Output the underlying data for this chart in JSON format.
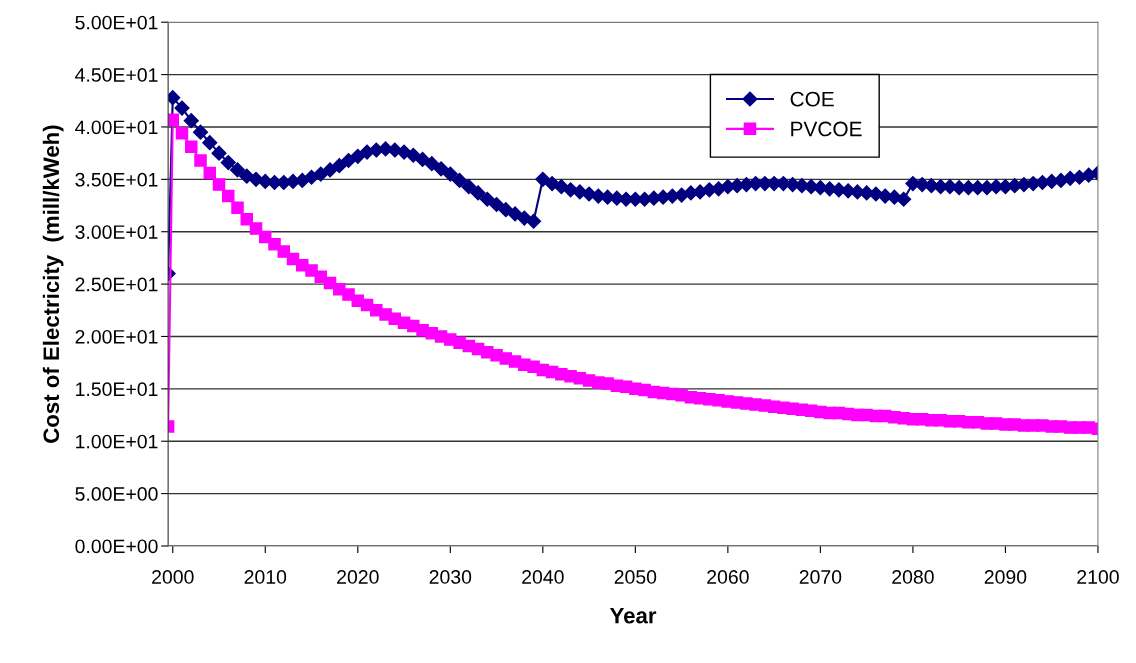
{
  "chart_data": {
    "type": "line",
    "xlabel": "Year",
    "ylabel": "Cost of Electricity  (mill/kWeh)",
    "x": [
      1999.5,
      2000,
      2001,
      2002,
      2003,
      2004,
      2005,
      2006,
      2007,
      2008,
      2009,
      2010,
      2011,
      2012,
      2013,
      2014,
      2015,
      2016,
      2017,
      2018,
      2019,
      2020,
      2021,
      2022,
      2023,
      2024,
      2025,
      2026,
      2027,
      2028,
      2029,
      2030,
      2031,
      2032,
      2033,
      2034,
      2035,
      2036,
      2037,
      2038,
      2039,
      2040,
      2041,
      2042,
      2043,
      2044,
      2045,
      2046,
      2047,
      2048,
      2049,
      2050,
      2051,
      2052,
      2053,
      2054,
      2055,
      2056,
      2057,
      2058,
      2059,
      2060,
      2061,
      2062,
      2063,
      2064,
      2065,
      2066,
      2067,
      2068,
      2069,
      2070,
      2071,
      2072,
      2073,
      2074,
      2075,
      2076,
      2077,
      2078,
      2079,
      2080,
      2081,
      2082,
      2083,
      2084,
      2085,
      2086,
      2087,
      2088,
      2089,
      2090,
      2091,
      2092,
      2093,
      2094,
      2095,
      2096,
      2097,
      2098,
      2099,
      2100
    ],
    "series": [
      {
        "name": "COE",
        "color": "#000080",
        "marker": "diamond",
        "values": [
          26.0,
          42.8,
          41.8,
          40.6,
          39.5,
          38.5,
          37.5,
          36.6,
          35.9,
          35.3,
          35.0,
          34.8,
          34.7,
          34.7,
          34.8,
          34.9,
          35.2,
          35.5,
          35.9,
          36.3,
          36.8,
          37.2,
          37.6,
          37.8,
          37.9,
          37.8,
          37.6,
          37.3,
          36.9,
          36.5,
          36.0,
          35.5,
          34.9,
          34.3,
          33.7,
          33.1,
          32.6,
          32.1,
          31.7,
          31.3,
          31.0,
          35.0,
          34.6,
          34.3,
          34.0,
          33.8,
          33.6,
          33.4,
          33.3,
          33.2,
          33.1,
          33.1,
          33.1,
          33.2,
          33.3,
          33.4,
          33.5,
          33.7,
          33.8,
          34.0,
          34.1,
          34.3,
          34.4,
          34.5,
          34.6,
          34.6,
          34.6,
          34.6,
          34.5,
          34.4,
          34.3,
          34.2,
          34.1,
          34.0,
          33.9,
          33.8,
          33.7,
          33.6,
          33.4,
          33.3,
          33.1,
          34.6,
          34.5,
          34.4,
          34.3,
          34.3,
          34.2,
          34.2,
          34.2,
          34.2,
          34.3,
          34.3,
          34.4,
          34.5,
          34.6,
          34.7,
          34.8,
          34.9,
          35.1,
          35.2,
          35.4,
          35.6
        ]
      },
      {
        "name": "PVCOE",
        "color": "#ff00ff",
        "marker": "square",
        "values": [
          11.4,
          40.7,
          39.4,
          38.1,
          36.8,
          35.6,
          34.5,
          33.4,
          32.3,
          31.2,
          30.3,
          29.5,
          28.8,
          28.1,
          27.4,
          26.8,
          26.3,
          25.7,
          25.1,
          24.5,
          24.0,
          23.4,
          23.0,
          22.5,
          22.1,
          21.7,
          21.3,
          21.0,
          20.6,
          20.3,
          20.0,
          19.7,
          19.4,
          19.1,
          18.8,
          18.5,
          18.2,
          17.9,
          17.6,
          17.3,
          17.1,
          16.8,
          16.6,
          16.4,
          16.2,
          16.0,
          15.8,
          15.6,
          15.5,
          15.3,
          15.2,
          15.0,
          14.9,
          14.7,
          14.6,
          14.5,
          14.4,
          14.2,
          14.1,
          14.0,
          13.9,
          13.8,
          13.7,
          13.6,
          13.5,
          13.4,
          13.3,
          13.2,
          13.1,
          13.0,
          12.9,
          12.8,
          12.7,
          12.7,
          12.6,
          12.5,
          12.5,
          12.4,
          12.4,
          12.3,
          12.2,
          12.1,
          12.1,
          12.0,
          12.0,
          11.9,
          11.9,
          11.8,
          11.8,
          11.7,
          11.7,
          11.6,
          11.6,
          11.5,
          11.5,
          11.5,
          11.4,
          11.4,
          11.3,
          11.3,
          11.3,
          11.2
        ]
      }
    ],
    "xlim": [
      1999.5,
      2100
    ],
    "xticks": [
      2000,
      2010,
      2020,
      2030,
      2040,
      2050,
      2060,
      2070,
      2080,
      2090,
      2100
    ],
    "ylim": [
      0,
      50
    ],
    "yticks": [
      {
        "value": 0,
        "label": "0.00E+00"
      },
      {
        "value": 5,
        "label": "5.00E+00"
      },
      {
        "value": 10,
        "label": "1.00E+01"
      },
      {
        "value": 15,
        "label": "1.50E+01"
      },
      {
        "value": 20,
        "label": "2.00E+01"
      },
      {
        "value": 25,
        "label": "2.50E+01"
      },
      {
        "value": 30,
        "label": "3.00E+01"
      },
      {
        "value": 35,
        "label": "3.50E+01"
      },
      {
        "value": 40,
        "label": "4.00E+01"
      },
      {
        "value": 45,
        "label": "4.50E+01"
      },
      {
        "value": 50,
        "label": "5.00E+01"
      }
    ],
    "grid": "y",
    "legend": "top right",
    "line_style": "solid"
  }
}
